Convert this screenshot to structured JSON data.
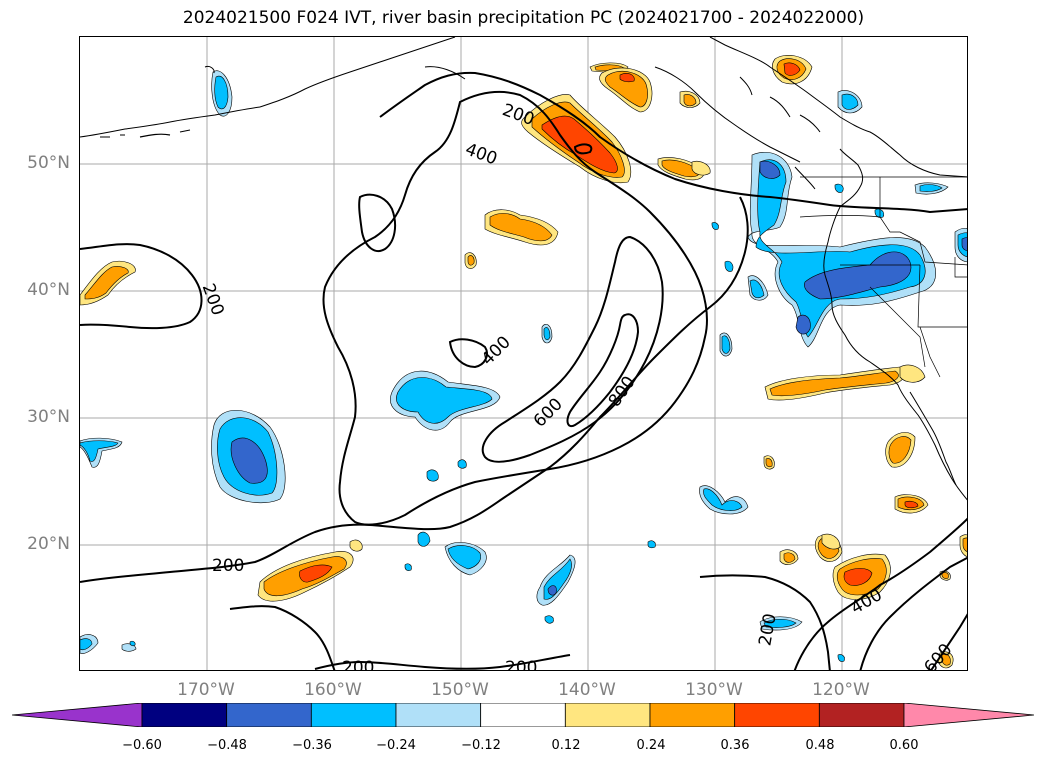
{
  "title": "2024021500 F024 IVT, river basin precipitation PC (2024021700 - 2024022000)",
  "lat_labels": [
    "50°N",
    "40°N",
    "30°N",
    "20°N"
  ],
  "lon_labels": [
    "170°W",
    "160°W",
    "150°W",
    "140°W",
    "130°W",
    "120°W"
  ],
  "contour_labels": [
    {
      "text": "200",
      "rot": 20
    },
    {
      "text": "400",
      "rot": 20
    },
    {
      "text": "200",
      "rot": 70
    },
    {
      "text": "400",
      "rot": -45
    },
    {
      "text": "600",
      "rot": -45
    },
    {
      "text": "800",
      "rot": -55
    },
    {
      "text": "200",
      "rot": 0
    },
    {
      "text": "200",
      "rot": 0
    },
    {
      "text": "200",
      "rot": 0
    },
    {
      "text": "200",
      "rot": -80
    },
    {
      "text": "400",
      "rot": -30
    },
    {
      "text": "600",
      "rot": -50
    }
  ],
  "colorbar": {
    "ticks": [
      "−0.60",
      "−0.48",
      "−0.36",
      "−0.24",
      "−0.12",
      "0.12",
      "0.24",
      "0.36",
      "0.48",
      "0.60"
    ],
    "colors": [
      "#9933cc",
      "#000080",
      "#3366cc",
      "#00bfff",
      "#b0e0f8",
      "#ffffff",
      "#ffe680",
      "#ff9f00",
      "#ff4500",
      "#b22222",
      "#ff88aa"
    ]
  },
  "colors": {
    "neg_light": "#b0e0f8",
    "neg_mid": "#00bfff",
    "neg_dark": "#3366cc",
    "pos_light": "#ffe680",
    "pos_mid": "#ff9f00",
    "pos_dark": "#ff4500"
  }
}
